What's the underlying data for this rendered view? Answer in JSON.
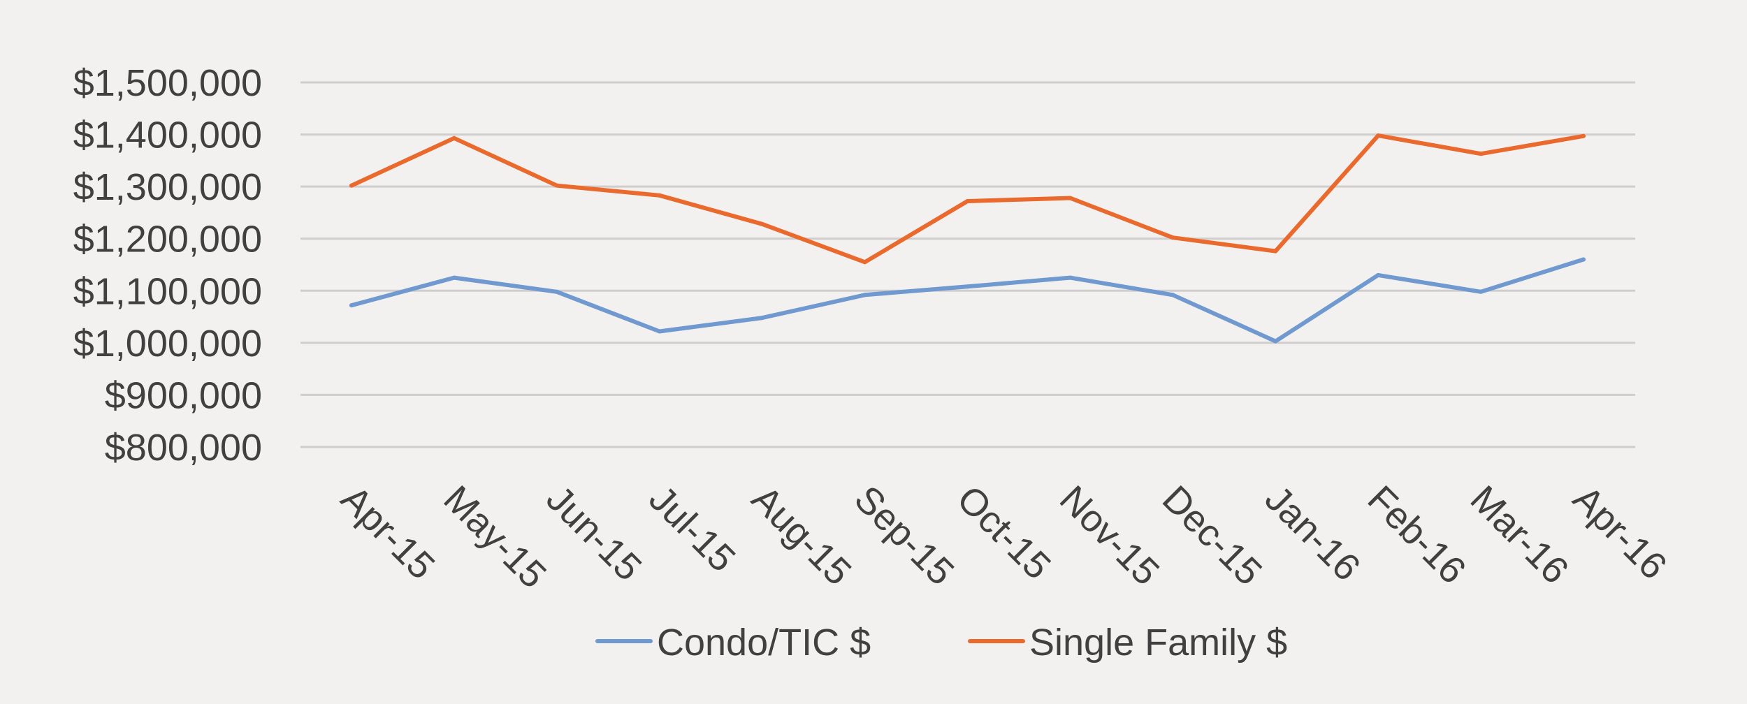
{
  "chart_data": {
    "type": "line",
    "title": "",
    "xlabel": "",
    "ylabel": "",
    "categories": [
      "Apr-15",
      "May-15",
      "Jun-15",
      "Jul-15",
      "Aug-15",
      "Sep-15",
      "Oct-15",
      "Nov-15",
      "Dec-15",
      "Jan-16",
      "Feb-16",
      "Mar-16",
      "Apr-16"
    ],
    "series": [
      {
        "name": "Condo/TIC $",
        "color": "#7099d0",
        "values": [
          1072000,
          1125000,
          1098000,
          1022000,
          1048000,
          1092000,
          1108000,
          1125000,
          1092000,
          1003000,
          1130000,
          1098000,
          1160000
        ]
      },
      {
        "name": "Single Family $",
        "color": "#ea6a2e",
        "values": [
          1302000,
          1393000,
          1302000,
          1283000,
          1228000,
          1155000,
          1272000,
          1278000,
          1202000,
          1176000,
          1398000,
          1363000,
          1397000
        ]
      }
    ],
    "ylim": [
      800000,
      1500000
    ],
    "yticks": [
      800000,
      900000,
      1000000,
      1100000,
      1200000,
      1300000,
      1400000,
      1500000
    ],
    "ytick_labels": [
      "$800,000",
      "$900,000",
      "$1,000,000",
      "$1,100,000",
      "$1,200,000",
      "$1,300,000",
      "$1,400,000",
      "$1,500,000"
    ],
    "grid": true,
    "legend_position": "bottom"
  }
}
